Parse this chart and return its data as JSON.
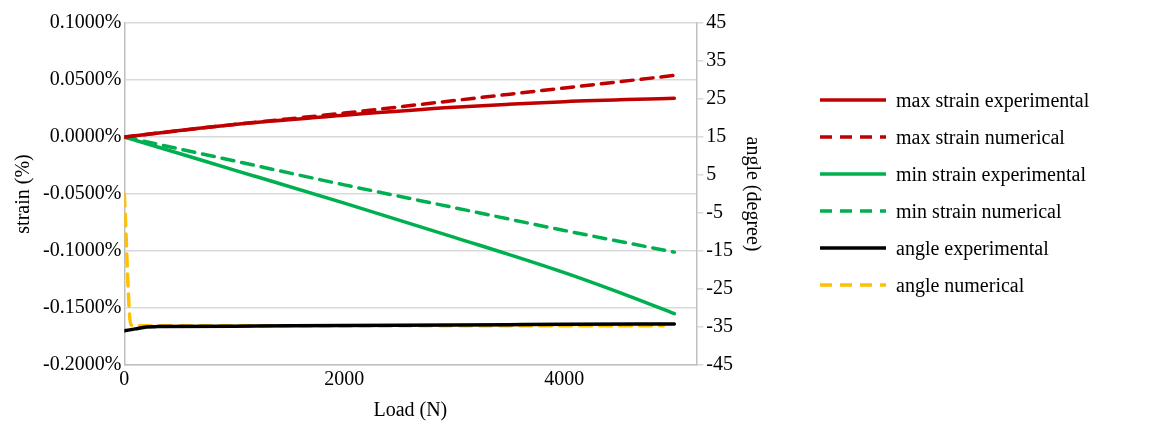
{
  "chart_data": {
    "type": "line",
    "xlabel": "Load (N)",
    "ylabel": "strain (%)",
    "y2label": "angle (degree)",
    "xlim": [
      0,
      5200
    ],
    "xticks": [
      0,
      2000,
      4000
    ],
    "ylim": [
      -0.2,
      0.1
    ],
    "yticks": [
      {
        "value": -0.2,
        "label": "-0.2000%"
      },
      {
        "value": -0.15,
        "label": "-0.1500%"
      },
      {
        "value": -0.1,
        "label": "-0.1000%"
      },
      {
        "value": -0.05,
        "label": "-0.0500%"
      },
      {
        "value": 0,
        "label": "0.0000%"
      },
      {
        "value": 0.05,
        "label": "0.0500%"
      },
      {
        "value": 0.1,
        "label": "0.1000%"
      }
    ],
    "y2lim": [
      -45,
      45
    ],
    "y2ticks": [
      -45,
      -35,
      -25,
      -15,
      -5,
      5,
      15,
      25,
      35,
      45
    ],
    "grid": "y",
    "legend": "right",
    "marker": "none",
    "series": [
      {
        "name": "max strain experimental",
        "color": "#c00000",
        "line_style": "solid",
        "x": [
          0,
          1000,
          2000,
          3000,
          4000,
          5000
        ],
        "values": [
          0,
          0.011,
          0.019,
          0.026,
          0.031,
          0.034
        ]
      },
      {
        "name": "max strain numerical",
        "color": "#c00000",
        "line_style": "dashed",
        "x": [
          0,
          1000,
          2000,
          3000,
          4000,
          5000
        ],
        "values": [
          0,
          0.011,
          0.021,
          0.032,
          0.043,
          0.054
        ]
      },
      {
        "name": "min strain experimental",
        "color": "#00b050",
        "line_style": "solid",
        "x": [
          0,
          1000,
          2000,
          3000,
          4000,
          4600,
          5000
        ],
        "values": [
          0,
          -0.029,
          -0.058,
          -0.088,
          -0.119,
          -0.14,
          -0.155
        ]
      },
      {
        "name": "min strain numerical",
        "color": "#00b050",
        "line_style": "dashed",
        "x": [
          0,
          1000,
          2000,
          3000,
          4000,
          5000
        ],
        "values": [
          0,
          -0.021,
          -0.042,
          -0.062,
          -0.082,
          -0.101
        ]
      },
      {
        "name": "angle experimental",
        "color": "#000000",
        "line_style": "solid",
        "axis": "y2",
        "x": [
          0,
          100,
          200,
          300,
          1000,
          2000,
          3000,
          4000,
          5000
        ],
        "values": [
          -36,
          -35.5,
          -35,
          -34.9,
          -34.8,
          -34.6,
          -34.5,
          -34.3,
          -34.2
        ]
      },
      {
        "name": "angle numerical",
        "color": "#ffc000",
        "line_style": "dashed",
        "axis": "y2",
        "x": [
          0,
          60,
          300,
          1000,
          2000,
          3000,
          4000,
          4900
        ],
        "values": [
          0,
          -34.5,
          -34.7,
          -34.7,
          -34.7,
          -34.7,
          -34.7,
          -34.7
        ]
      }
    ]
  }
}
